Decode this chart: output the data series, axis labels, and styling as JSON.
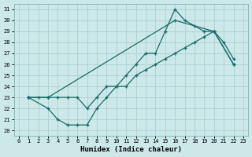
{
  "xlabel": "Humidex (Indice chaleur)",
  "bg_color": "#cce8e8",
  "line_color": "#1a6b6b",
  "grid_color": "#b0d4d4",
  "xlim": [
    -0.5,
    23.5
  ],
  "ylim": [
    19.5,
    31.5
  ],
  "xticks": [
    0,
    1,
    2,
    3,
    4,
    5,
    6,
    7,
    8,
    9,
    10,
    11,
    12,
    13,
    14,
    15,
    16,
    17,
    18,
    19,
    20,
    21,
    22,
    23
  ],
  "yticks": [
    20,
    21,
    22,
    23,
    24,
    25,
    26,
    27,
    28,
    29,
    30,
    31
  ],
  "line1_x": [
    1,
    2,
    3,
    4,
    5,
    6,
    7,
    8,
    9,
    10,
    11,
    12,
    13,
    14,
    15,
    16,
    17,
    18,
    19,
    20,
    21,
    22
  ],
  "line1_y": [
    23,
    23,
    23,
    23,
    23,
    23,
    22,
    23,
    24,
    24,
    25,
    26,
    27,
    27,
    29,
    31,
    30,
    29.5,
    29,
    29,
    28,
    26.5
  ],
  "line2_x": [
    1,
    3,
    4,
    5,
    6,
    7,
    8,
    9,
    10,
    11,
    12,
    13,
    14,
    15,
    16,
    17,
    18,
    19,
    20,
    22
  ],
  "line2_y": [
    23,
    22,
    21,
    20.5,
    20.5,
    20.5,
    22,
    23,
    24,
    24,
    25,
    25.5,
    26,
    26.5,
    27,
    27.5,
    28,
    28.5,
    29,
    26
  ],
  "line3_x": [
    1,
    3,
    16,
    20,
    22
  ],
  "line3_y": [
    23,
    23,
    30,
    29,
    26
  ]
}
